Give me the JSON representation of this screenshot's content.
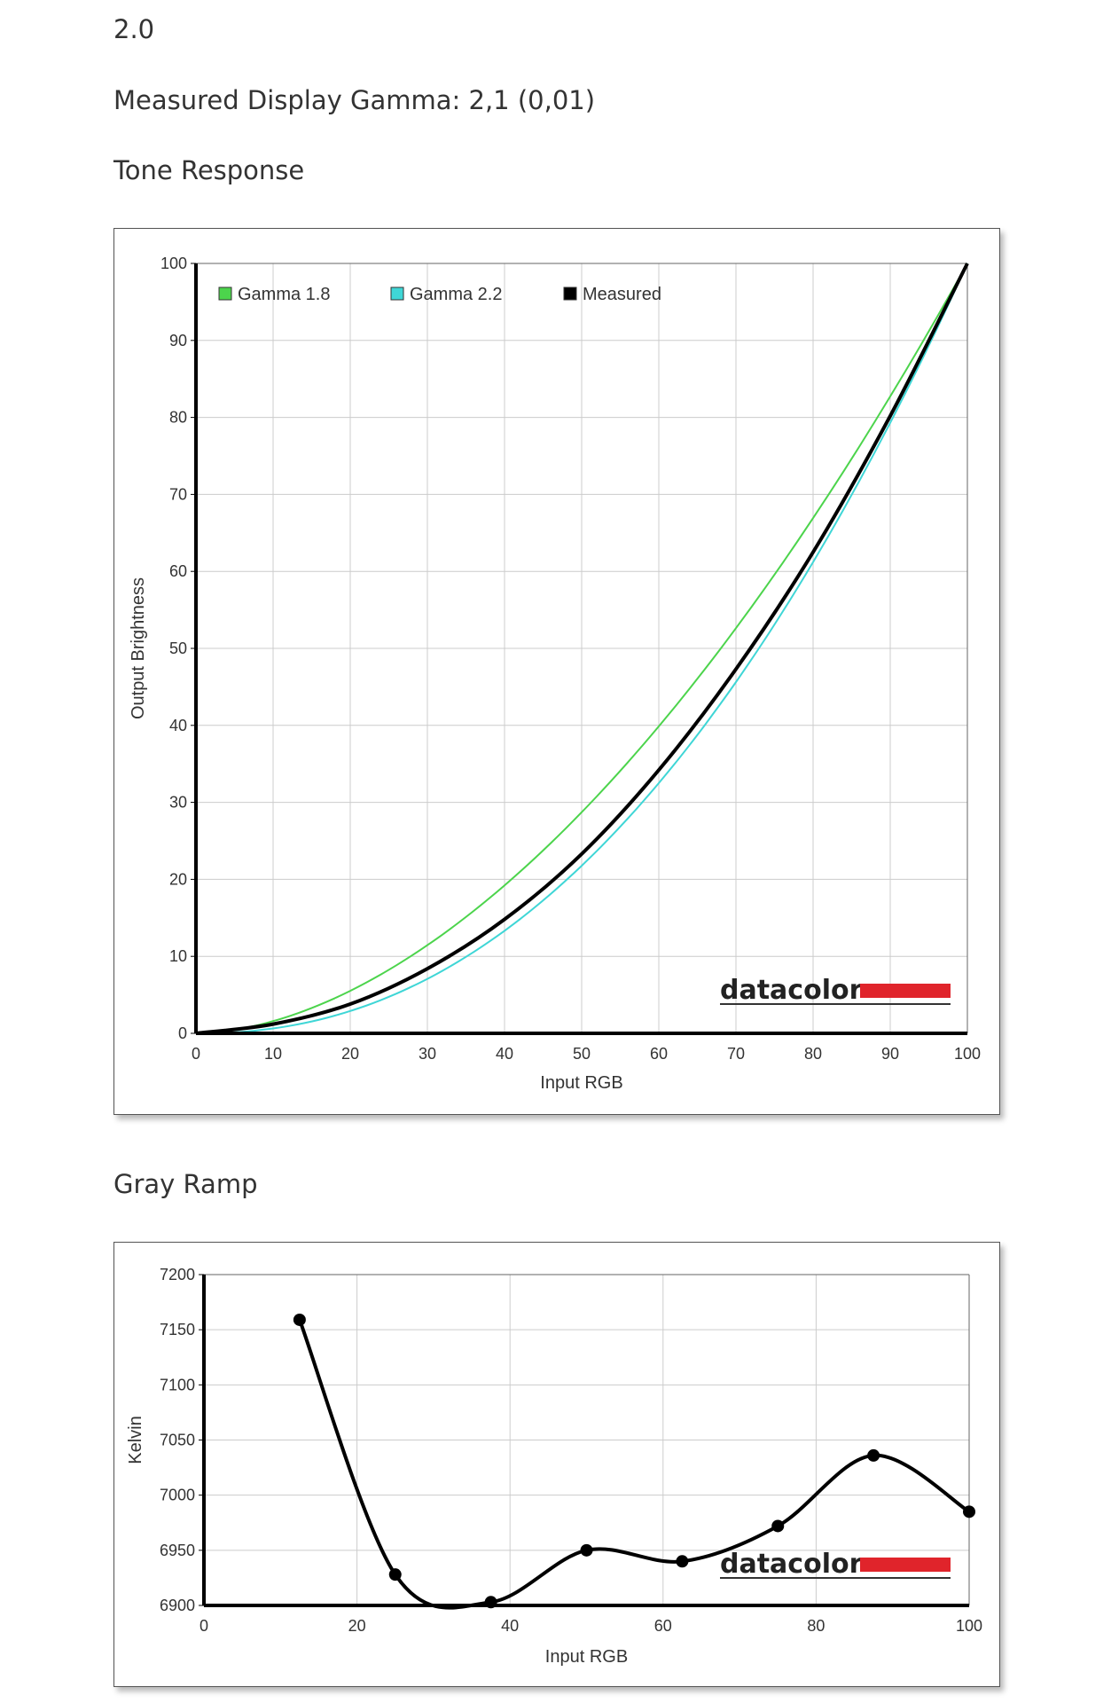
{
  "header": {
    "version": "2.0",
    "measured_gamma": "Measured Display Gamma: 2,1 (0,01)"
  },
  "tone_response": {
    "title": "Tone Response",
    "logo_text": "datacolor"
  },
  "gray_ramp": {
    "title": "Gray Ramp",
    "logo_text": "datacolor"
  },
  "colors": {
    "gamma18": "#4cd44c",
    "gamma22": "#3fd6d6",
    "measured": "#000000",
    "grid": "#cccccc",
    "logo_red": "#e0242b"
  },
  "chart_data": [
    {
      "type": "line",
      "title": "Tone Response",
      "xlabel": "Input RGB",
      "ylabel": "Output Brightness",
      "xlim": [
        0,
        100
      ],
      "ylim": [
        0,
        100
      ],
      "xticks": [
        0,
        10,
        20,
        30,
        40,
        50,
        60,
        70,
        80,
        90,
        100
      ],
      "yticks": [
        0,
        10,
        20,
        30,
        40,
        50,
        60,
        70,
        80,
        90,
        100
      ],
      "grid": true,
      "legend_position": "top-left",
      "series": [
        {
          "name": "Gamma 1.8",
          "color": "#4cd44c",
          "gamma": 1.8,
          "x": [
            0,
            10,
            20,
            30,
            40,
            50,
            60,
            70,
            80,
            90,
            100
          ],
          "y": [
            0,
            1.6,
            5.5,
            11.5,
            19.2,
            28.7,
            39.9,
            52.6,
            66.9,
            82.7,
            100
          ]
        },
        {
          "name": "Gamma 2.2",
          "color": "#3fd6d6",
          "gamma": 2.2,
          "x": [
            0,
            10,
            20,
            30,
            40,
            50,
            60,
            70,
            80,
            90,
            100
          ],
          "y": [
            0,
            0.6,
            2.9,
            7.1,
            13.3,
            21.8,
            32.5,
            45.6,
            61.2,
            79.3,
            100
          ]
        },
        {
          "name": "Measured",
          "color": "#000000",
          "x": [
            0,
            10,
            20,
            30,
            40,
            50,
            60,
            70,
            80,
            90,
            100
          ],
          "y": [
            0,
            1.2,
            3.8,
            8.4,
            14.8,
            23.3,
            34.2,
            47.3,
            62.5,
            80.2,
            100
          ]
        }
      ]
    },
    {
      "type": "line",
      "title": "Gray Ramp",
      "xlabel": "Input RGB",
      "ylabel": "Kelvin",
      "xlim": [
        0,
        100
      ],
      "ylim": [
        6900,
        7200
      ],
      "xticks": [
        0,
        20,
        40,
        60,
        80,
        100
      ],
      "yticks": [
        6900,
        6950,
        7000,
        7050,
        7100,
        7150,
        7200
      ],
      "grid": true,
      "series": [
        {
          "color": "#000000",
          "x": [
            12.5,
            25,
            37.5,
            50,
            62.5,
            75,
            87.5,
            100
          ],
          "y": [
            7159,
            6928,
            6903,
            6950,
            6940,
            6972,
            7036,
            6985
          ]
        }
      ]
    }
  ]
}
